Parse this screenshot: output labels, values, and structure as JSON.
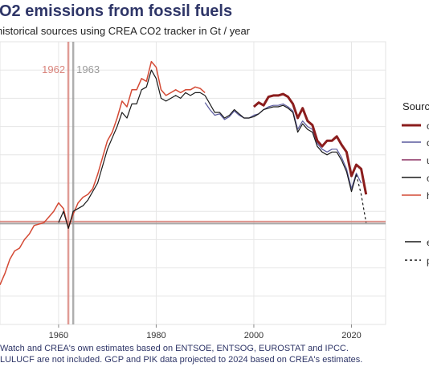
{
  "header": {
    "title": "O2 emissions from fossil fuels",
    "subtitle": "historical sources using CREA CO2 tracker in Gt / year"
  },
  "legend": {
    "title": "Sourc",
    "line_styles": [
      {
        "label": "e",
        "style": "solid"
      },
      {
        "label": "p",
        "style": "dashed"
      }
    ]
  },
  "caption": {
    "line1": "Watch and CREA's own estimates based on ENTSOE, ENTSOG, EUROSTAT and IPCC.",
    "line2": "LULUCF are not included. GCP and PIK data projected to 2024 based on CREA's estimates."
  },
  "chart_data": {
    "type": "line",
    "x_range": [
      1948,
      2027
    ],
    "y_range": [
      0,
      10
    ],
    "grid": true,
    "x_ticks": [
      1960,
      1980,
      2000,
      2020
    ],
    "annotations": [
      {
        "label": "1962",
        "x": 1962,
        "color": "#d9837b"
      },
      {
        "label": "1963",
        "x": 1963,
        "color": "#9a9a9a"
      }
    ],
    "reference_lines": {
      "horizontal": [
        {
          "y": 3.64,
          "color": "#d9837b"
        },
        {
          "y": 3.57,
          "color": "#9a9a9a"
        }
      ]
    },
    "series": [
      {
        "color": "#d44a35",
        "style": "solid",
        "width": 1.5,
        "x": [
          1948,
          1949,
          1950,
          1951,
          1952,
          1953,
          1954,
          1955,
          1956,
          1957,
          1958,
          1959,
          1960,
          1961,
          1962,
          1963,
          1964,
          1965,
          1966,
          1967,
          1968,
          1969,
          1970,
          1971,
          1972,
          1973,
          1974,
          1975,
          1976,
          1977,
          1978,
          1979,
          1980,
          1981,
          1982,
          1983,
          1984,
          1985,
          1986,
          1987,
          1988,
          1989,
          1990
        ],
        "y": [
          1.4,
          1.8,
          2.3,
          2.6,
          2.7,
          3.0,
          3.2,
          3.5,
          3.55,
          3.6,
          3.8,
          4.0,
          4.3,
          4.1,
          3.4,
          3.9,
          4.3,
          4.5,
          4.6,
          4.8,
          5.3,
          5.9,
          6.5,
          6.8,
          7.3,
          7.9,
          7.7,
          8.3,
          8.3,
          8.7,
          8.6,
          9.3,
          9.1,
          8.3,
          8.1,
          8.2,
          8.3,
          8.2,
          8.3,
          8.3,
          8.4,
          8.35,
          8.2
        ]
      },
      {
        "color": "#1a1a1a",
        "style": "solid",
        "width": 1.2,
        "x": [
          1960,
          1961,
          1962,
          1963,
          1964,
          1965,
          1966,
          1967,
          1968,
          1969,
          1970,
          1971,
          1972,
          1973,
          1974,
          1975,
          1976,
          1977,
          1978,
          1979,
          1980,
          1981,
          1982,
          1983,
          1984,
          1985,
          1986,
          1987,
          1988,
          1989,
          1990
        ],
        "y": [
          3.6,
          4.0,
          3.4,
          4.0,
          4.1,
          4.2,
          4.4,
          4.7,
          5.0,
          5.6,
          6.2,
          6.6,
          7.0,
          7.5,
          7.3,
          7.8,
          7.8,
          8.3,
          8.4,
          9.0,
          8.7,
          8.0,
          7.9,
          8.0,
          8.1,
          8.0,
          8.2,
          8.1,
          8.2,
          8.2,
          8.1
        ]
      },
      {
        "color": "#5a5a9e",
        "style": "solid",
        "width": 1.2,
        "x": [
          1990,
          1991,
          1992,
          1993,
          1994,
          1995,
          1996,
          1997,
          1998,
          1999,
          2000,
          2001,
          2002,
          2003,
          2004,
          2005,
          2006,
          2007,
          2008,
          2009,
          2010,
          2011,
          2012,
          2013,
          2014,
          2015,
          2016,
          2017,
          2018,
          2019,
          2020,
          2021,
          2022
        ],
        "y": [
          7.85,
          7.6,
          7.4,
          7.45,
          7.25,
          7.35,
          7.55,
          7.4,
          7.3,
          7.3,
          7.4,
          7.45,
          7.6,
          7.7,
          7.75,
          7.75,
          7.8,
          7.7,
          7.55,
          6.9,
          7.2,
          7.0,
          6.9,
          6.4,
          6.2,
          6.1,
          6.2,
          6.2,
          5.9,
          5.5,
          4.8,
          5.35,
          5.0
        ]
      },
      {
        "color": "#1a1a1a",
        "style": "solid",
        "width": 1.2,
        "x": [
          1990,
          1991,
          1992,
          1993,
          1994,
          1995,
          1996,
          1997,
          1998,
          1999,
          2000,
          2001,
          2002,
          2003,
          2004,
          2005,
          2006,
          2007,
          2008,
          2009,
          2010,
          2011,
          2012,
          2013,
          2014,
          2015,
          2016,
          2017,
          2018,
          2019,
          2020,
          2021
        ],
        "y": [
          8.1,
          7.8,
          7.5,
          7.5,
          7.3,
          7.4,
          7.6,
          7.45,
          7.3,
          7.3,
          7.35,
          7.45,
          7.6,
          7.65,
          7.7,
          7.7,
          7.75,
          7.65,
          7.5,
          6.8,
          7.1,
          6.9,
          6.8,
          6.3,
          6.1,
          6.0,
          6.1,
          6.1,
          5.8,
          5.4,
          4.7,
          5.3
        ]
      },
      {
        "color": "#1a1a1a",
        "style": "dashed",
        "width": 1.2,
        "x": [
          2021,
          2022,
          2023
        ],
        "y": [
          5.3,
          4.6,
          3.6
        ]
      },
      {
        "color": "#8b1d1d",
        "style": "solid",
        "width": 3,
        "x": [
          2000,
          2001,
          2002,
          2003,
          2004,
          2005,
          2006,
          2007,
          2008,
          2009,
          2010,
          2011,
          2012,
          2013,
          2014,
          2015,
          2016,
          2017,
          2018,
          2019,
          2020,
          2021,
          2022,
          2023
        ],
        "y": [
          7.7,
          7.85,
          7.75,
          8.05,
          8.1,
          8.1,
          8.15,
          8.05,
          7.8,
          7.3,
          7.65,
          7.2,
          7.05,
          6.5,
          6.3,
          6.5,
          6.5,
          6.65,
          6.35,
          6.1,
          5.25,
          5.65,
          5.5,
          4.6
        ]
      }
    ]
  }
}
